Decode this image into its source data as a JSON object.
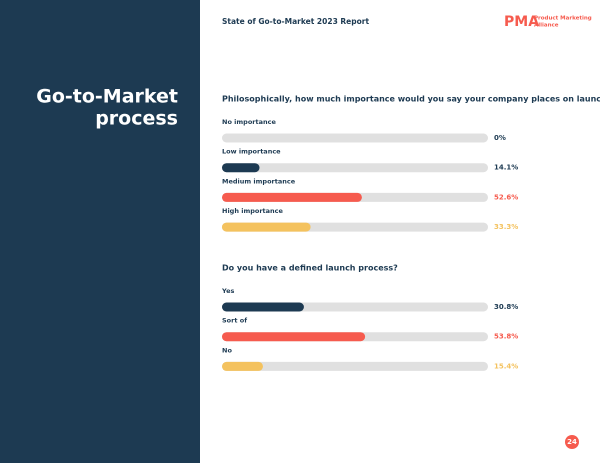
{
  "header": {
    "report_title": "State of Go-to-Market 2023 Report",
    "logo_mark": "PMA",
    "logo_text": [
      "Product Marketing",
      "Alliance"
    ]
  },
  "section_title": [
    "Go-to-Market",
    "process"
  ],
  "page_number": "24",
  "chart_data": [
    {
      "type": "bar",
      "title": "Philosophically, how much importance would you say your company places on launches?",
      "categories": [
        "No importance",
        "Low importance",
        "Medium importance",
        "High importance"
      ],
      "values": [
        0,
        14.1,
        52.6,
        33.3
      ],
      "value_labels": [
        "0%",
        "14.1%",
        "52.6%",
        "33.3%"
      ],
      "colors": [
        "#1d3a52",
        "#1d3a52",
        "#f65b4e",
        "#f4c25e"
      ],
      "xlim": [
        0,
        100
      ]
    },
    {
      "type": "bar",
      "title": "Do you have a defined launch process?",
      "categories": [
        "Yes",
        "Sort of",
        "No"
      ],
      "values": [
        30.8,
        53.8,
        15.4
      ],
      "value_labels": [
        "30.8%",
        "53.8%",
        "15.4%"
      ],
      "colors": [
        "#1d3a52",
        "#f65b4e",
        "#f4c25e"
      ],
      "xlim": [
        0,
        100
      ]
    }
  ]
}
